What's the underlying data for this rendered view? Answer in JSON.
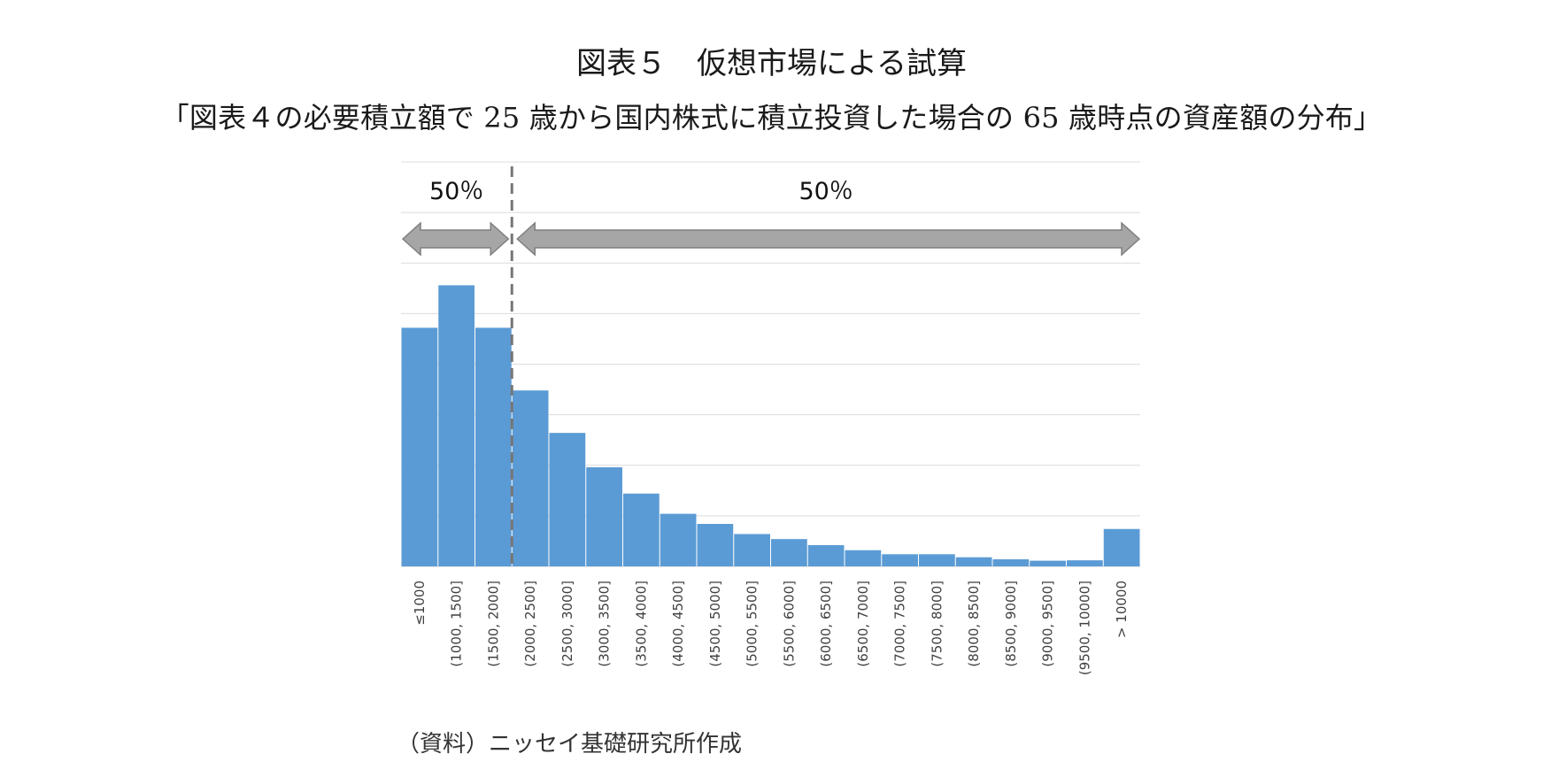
{
  "figure": {
    "title": "図表５　仮想市場による試算",
    "subtitle": "「図表４の必要積立額で 25 歳から国内株式に積立投資した場合の 65 歳時点の資産額の分布」",
    "source": "（資料）ニッセイ基礎研究所作成"
  },
  "chart_data": {
    "type": "bar",
    "categories": [
      "≤1000",
      "(1000, 1500]",
      "(1500, 2000]",
      "(2000, 2500]",
      "(2500, 3000]",
      "(3000, 3500]",
      "(3500, 4000]",
      "(4000, 4500]",
      "(4500, 5000]",
      "(5000, 5500]",
      "(5500, 6000]",
      "(6000, 6500]",
      "(6500, 7000]",
      "(7000, 7500]",
      "(7500, 8000]",
      "(8000, 8500]",
      "(8500, 9000]",
      "(9000, 9500]",
      "(9500, 10000]",
      "> 10000"
    ],
    "values": [
      11.8,
      13.9,
      11.8,
      8.7,
      6.6,
      4.9,
      3.6,
      2.6,
      2.1,
      1.6,
      1.35,
      1.05,
      0.8,
      0.6,
      0.6,
      0.45,
      0.35,
      0.28,
      0.3,
      1.85
    ],
    "ylim": [
      0,
      20
    ],
    "y_gridlines": [
      0,
      2.5,
      5,
      7.5,
      10,
      12.5,
      15,
      17.5,
      20
    ],
    "grid": true,
    "bar_color": "#5b9bd5",
    "divider_after_category": "(1500, 2000]",
    "annotations": {
      "left_share": "50％",
      "right_share": "50％"
    },
    "arrow_color": "#a6a6a6",
    "divider_color": "#767676"
  }
}
